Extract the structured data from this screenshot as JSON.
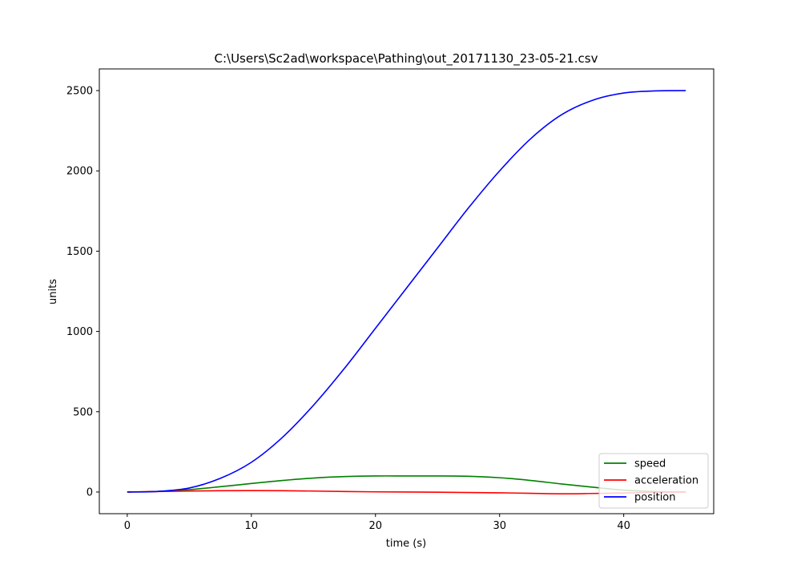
{
  "chart_data": {
    "type": "line",
    "title": "C:\\Users\\Sc2ad\\workspace\\Pathing\\out_20171130_23-05-21.csv",
    "xlabel": "time (s)",
    "ylabel": "units",
    "xlim": [
      -2.25,
      47.25
    ],
    "ylim": [
      -135,
      2635
    ],
    "xticks": [
      0,
      10,
      20,
      30,
      40
    ],
    "yticks": [
      0,
      500,
      1000,
      1500,
      2000,
      2500
    ],
    "xtick_labels": [
      "0",
      "10",
      "20",
      "30",
      "40"
    ],
    "ytick_labels": [
      "0",
      "500",
      "1000",
      "1500",
      "2000",
      "2500"
    ],
    "grid": false,
    "legend": "lower right",
    "x": [
      0,
      2.5,
      5,
      7.5,
      10,
      12.5,
      15,
      17.5,
      20,
      22.5,
      25,
      27.5,
      30,
      32.5,
      35,
      37.5,
      40,
      42.5,
      45
    ],
    "series": [
      {
        "name": "speed",
        "color": "#008000",
        "values": [
          0,
          4,
          15,
          33,
          53,
          72,
          87,
          96,
          100,
          100,
          100,
          98,
          89,
          72,
          50,
          30,
          12,
          3,
          0
        ]
      },
      {
        "name": "acceleration",
        "color": "#ff0000",
        "values": [
          0,
          3,
          6,
          8,
          9,
          8,
          6,
          3,
          1,
          0,
          -1,
          -3,
          -5,
          -8,
          -11,
          -9,
          -6,
          -2,
          0
        ]
      },
      {
        "name": "position",
        "color": "#0000ff",
        "values": [
          0,
          4,
          25,
          85,
          185,
          340,
          540,
          770,
          1020,
          1270,
          1520,
          1770,
          2000,
          2200,
          2350,
          2440,
          2485,
          2498,
          2500
        ]
      }
    ]
  }
}
